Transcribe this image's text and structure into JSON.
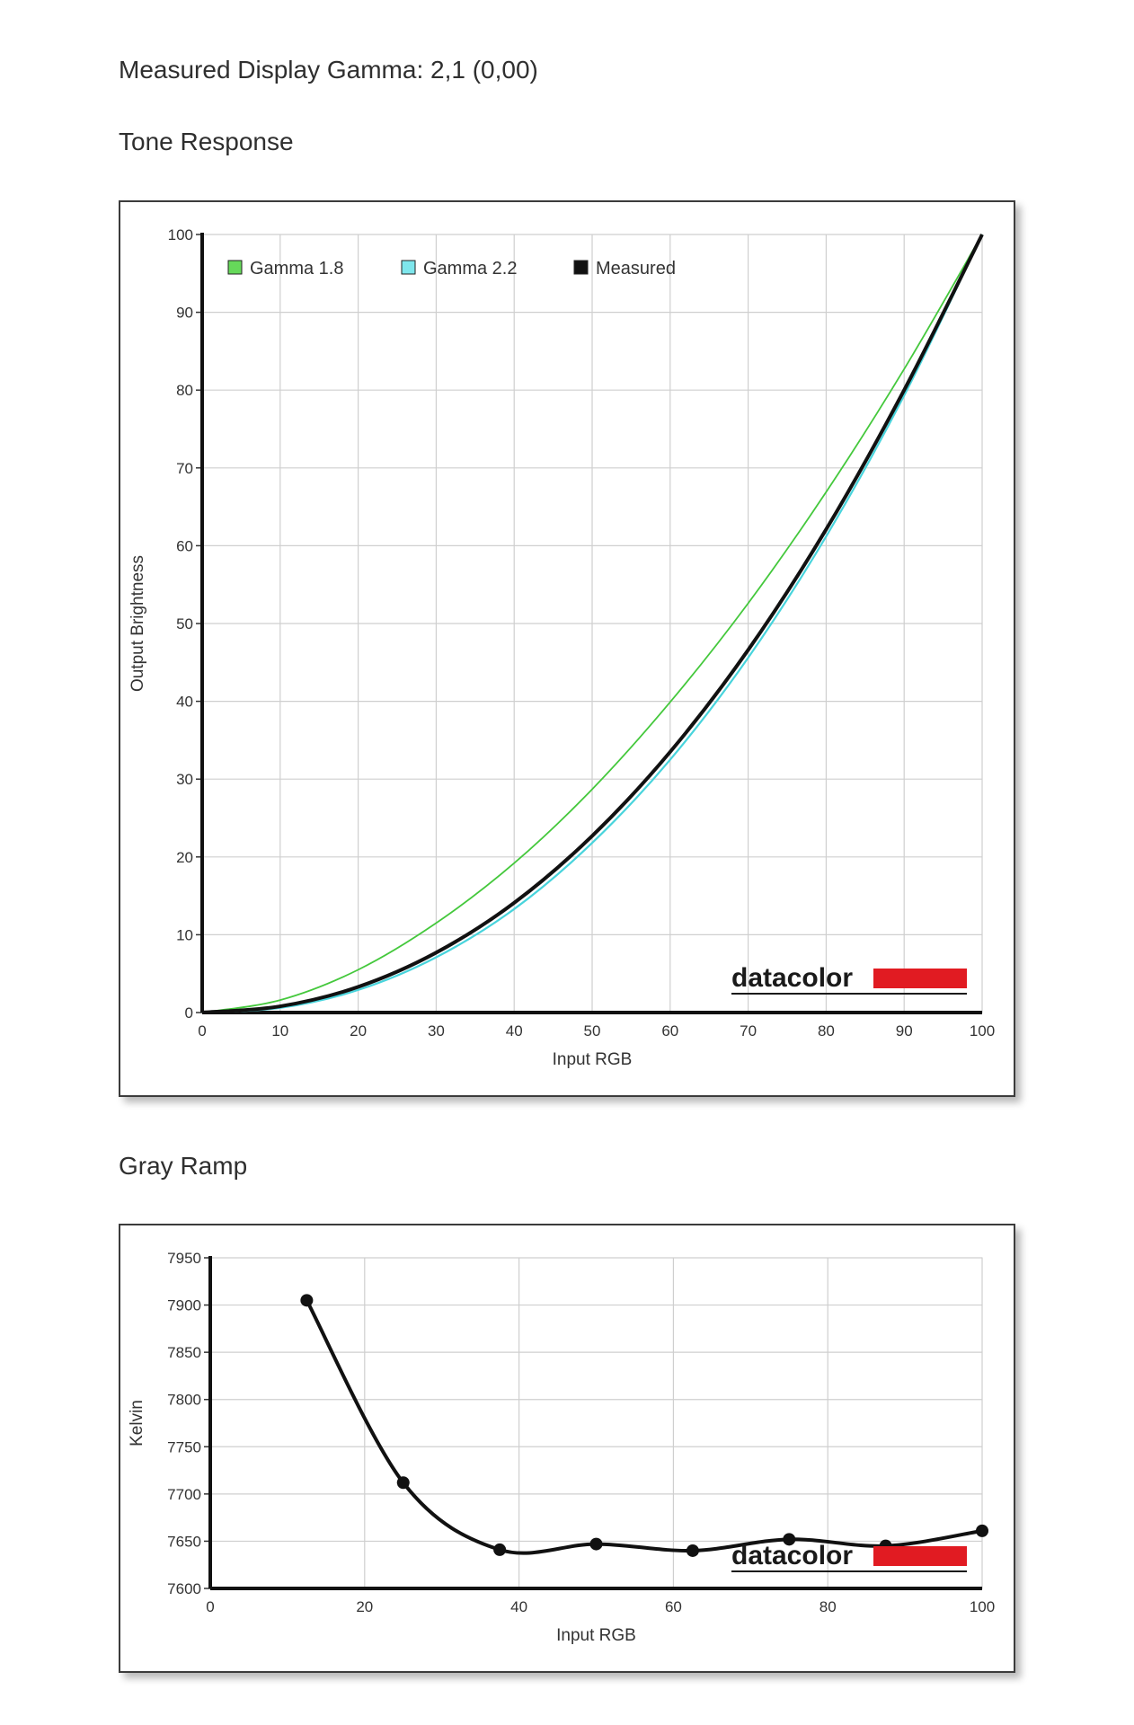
{
  "header": {
    "gamma_label": "Measured Display Gamma: 2,1 (0,00)",
    "tone_title": "Tone Response",
    "gray_title": "Gray Ramp"
  },
  "brand": {
    "text": "datacolor",
    "accent": "#e11b22"
  },
  "chart_data": [
    {
      "type": "line",
      "xlabel": "Input RGB",
      "ylabel": "Output Brightness",
      "xlim": [
        0,
        100
      ],
      "ylim": [
        0,
        100
      ],
      "xticks": [
        0,
        10,
        20,
        30,
        40,
        50,
        60,
        70,
        80,
        90,
        100
      ],
      "yticks": [
        0,
        10,
        20,
        30,
        40,
        50,
        60,
        70,
        80,
        90,
        100
      ],
      "grid": true,
      "legend_position": "top-left",
      "series": [
        {
          "name": "Gamma 1.8",
          "color": "#44c83c",
          "legend_fill": "#66d95a",
          "x": [
            0,
            10,
            20,
            30,
            40,
            50,
            60,
            70,
            80,
            90,
            100
          ],
          "y": [
            0,
            1.6,
            5.5,
            11.5,
            19.2,
            28.7,
            39.9,
            52.6,
            66.9,
            82.7,
            100
          ]
        },
        {
          "name": "Gamma 2.2",
          "color": "#48d4dc",
          "legend_fill": "#7ee6ec",
          "x": [
            0,
            10,
            20,
            30,
            40,
            50,
            60,
            70,
            80,
            90,
            100
          ],
          "y": [
            0,
            0.6,
            2.9,
            7.1,
            13.3,
            21.8,
            32.5,
            45.6,
            61.2,
            79.3,
            100
          ]
        },
        {
          "name": "Measured",
          "color": "#111111",
          "legend_fill": "#111111",
          "x": [
            0,
            10,
            20,
            30,
            40,
            50,
            60,
            70,
            80,
            90,
            100
          ],
          "y": [
            0,
            0.8,
            3.3,
            7.7,
            14.1,
            22.7,
            33.5,
            46.6,
            62.1,
            80.0,
            100
          ]
        }
      ]
    },
    {
      "type": "line",
      "xlabel": "Input RGB",
      "ylabel": "Kelvin",
      "xlim": [
        0,
        100
      ],
      "ylim": [
        7600,
        7950
      ],
      "xticks": [
        0,
        20,
        40,
        60,
        80,
        100
      ],
      "yticks": [
        7600,
        7650,
        7700,
        7750,
        7800,
        7850,
        7900,
        7950
      ],
      "grid": true,
      "series": [
        {
          "color": "#111111",
          "x": [
            12.5,
            25,
            37.5,
            50,
            62.5,
            75,
            87.5,
            100
          ],
          "y": [
            7905,
            7712,
            7641,
            7647,
            7640,
            7652,
            7645,
            7661
          ]
        }
      ]
    }
  ]
}
